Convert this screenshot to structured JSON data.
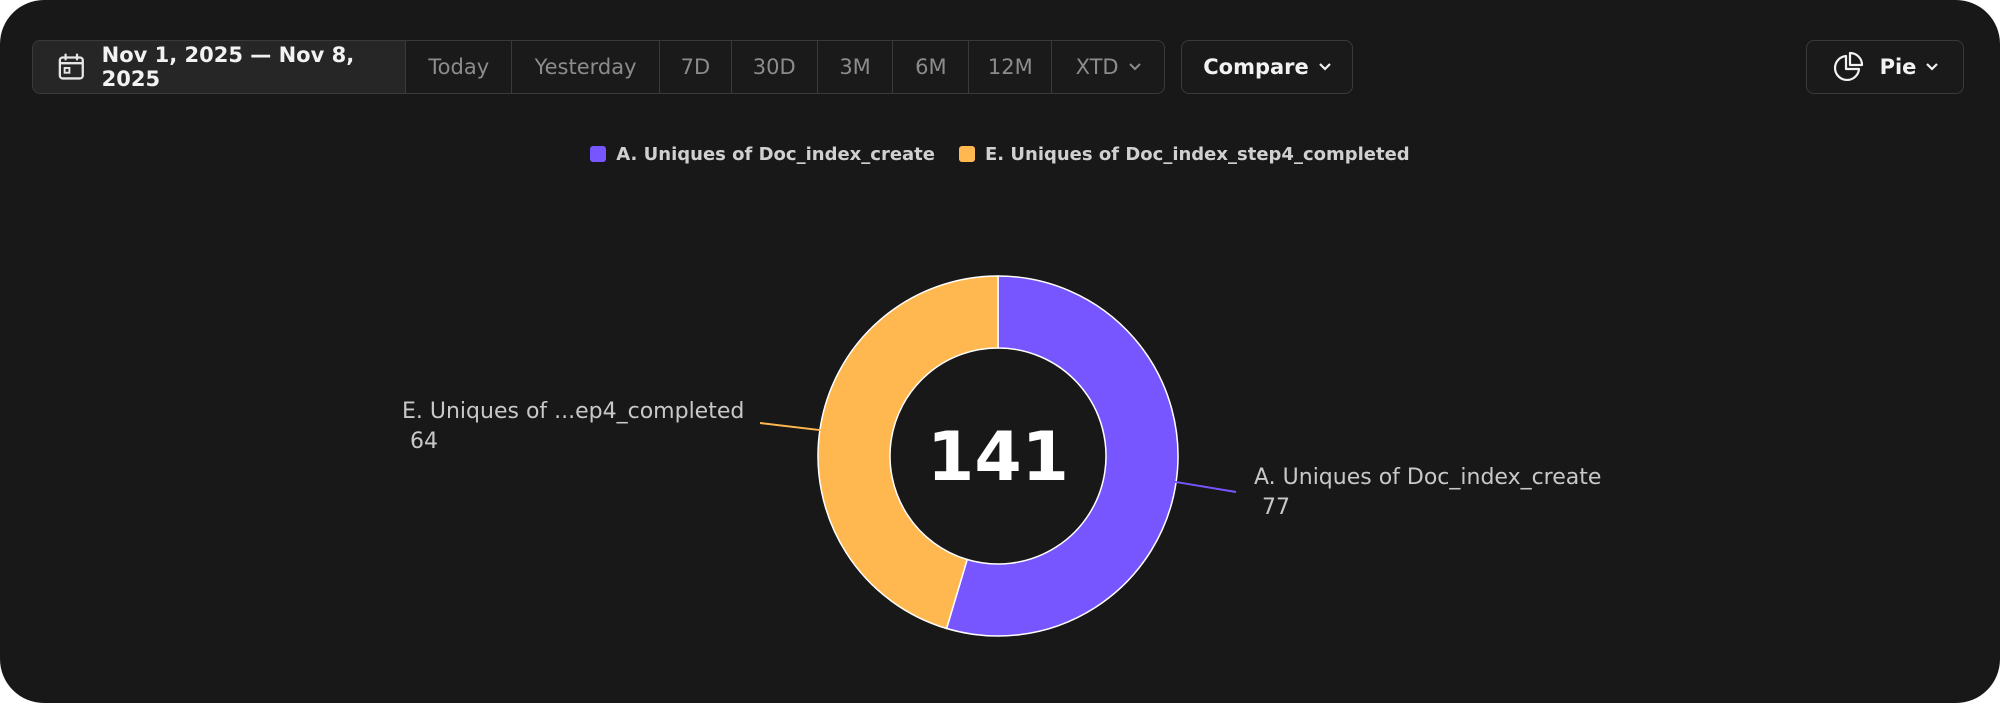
{
  "toolbar": {
    "date_range": "Nov 1, 2025 — Nov 8, 2025",
    "presets": [
      "Today",
      "Yesterday",
      "7D",
      "30D",
      "3M",
      "6M",
      "12M",
      "XTD"
    ],
    "compare_label": "Compare",
    "chart_type_label": "Pie"
  },
  "colors": {
    "series_a": "#7856ff",
    "series_e": "#ffb84f",
    "background": "#181818"
  },
  "chart_data": {
    "type": "pie",
    "style": "donut",
    "total_label": "141",
    "legend_position": "top-center",
    "series": [
      {
        "name": "A. Uniques of Doc_index_create",
        "label": "A. Uniques of Doc_index_create",
        "value": 77,
        "color": "#7856ff"
      },
      {
        "name": "E. Uniques of Doc_index_step4_completed",
        "label": "E. Uniques of ...ep4_completed",
        "value": 64,
        "color": "#ffb84f"
      }
    ]
  }
}
